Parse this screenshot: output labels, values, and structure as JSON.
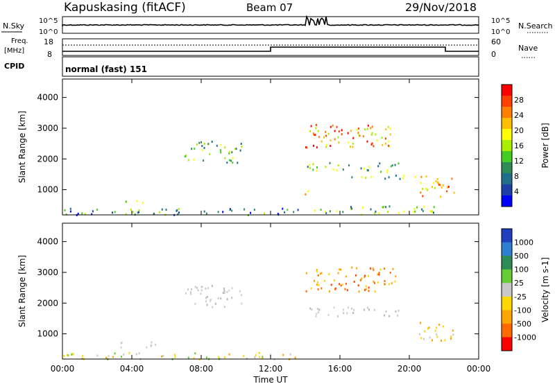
{
  "header": {
    "station": "Kapuskasing (fitACF)",
    "beam": "Beam 07",
    "date": "29/Nov/2018"
  },
  "strips": {
    "nsky_label": "N.Sky",
    "nsearch_label": "N.Search",
    "nsky_ticks": [
      "10^5",
      "10^0"
    ],
    "nsearch_ticks": [
      "10^5",
      "10^0"
    ],
    "freq_label_line1": "Freq.",
    "freq_label_line2": "[MHz]",
    "freq_ticks": [
      "18",
      "8"
    ],
    "nave_label": "Nave",
    "nave_ticks": [
      "60",
      "0"
    ],
    "cpid_label": "CPID",
    "cpid_text": "normal (fast) 151"
  },
  "chart_data": [
    {
      "type": "heatmap",
      "name": "power",
      "xlabel": "",
      "ylabel": "Slant Range [km]",
      "xlim": [
        0,
        24
      ],
      "ylim": [
        180,
        4600
      ],
      "yticks": [
        1000,
        2000,
        3000,
        4000
      ],
      "colorbar_label": "Power [dB]",
      "colorbar_ticks": [
        "28",
        "24",
        "20",
        "16",
        "12",
        "8",
        "4"
      ],
      "colorbar_colors": [
        "#ff0000",
        "#ff4000",
        "#ff8000",
        "#ffbf00",
        "#ffff00",
        "#aaee00",
        "#44cc22",
        "#2e8b57",
        "#1f6f8b",
        "#1c3fa8",
        "#0000ff"
      ],
      "echo_regions": [
        {
          "t0": 0.0,
          "t1": 13.8,
          "r0": 200,
          "r1": 420,
          "level": "low"
        },
        {
          "t0": 3.0,
          "t1": 4.7,
          "r0": 580,
          "r1": 720,
          "level": "mid"
        },
        {
          "t0": 7.0,
          "t1": 10.3,
          "r0": 1900,
          "r1": 2600,
          "level": "mid"
        },
        {
          "t0": 13.6,
          "t1": 14.2,
          "r0": 800,
          "r1": 1000,
          "level": "high"
        },
        {
          "t0": 14.0,
          "t1": 19.2,
          "r0": 2400,
          "r1": 3200,
          "level": "high"
        },
        {
          "t0": 14.0,
          "t1": 19.5,
          "r0": 1600,
          "r1": 1900,
          "level": "mid"
        },
        {
          "t0": 16.0,
          "t1": 20.5,
          "r0": 1350,
          "r1": 1500,
          "level": "mid"
        },
        {
          "t0": 20.5,
          "t1": 22.6,
          "r0": 800,
          "r1": 1500,
          "level": "high"
        },
        {
          "t0": 14.5,
          "t1": 21.8,
          "r0": 200,
          "r1": 500,
          "level": "mid"
        }
      ]
    },
    {
      "type": "heatmap",
      "name": "velocity",
      "xlabel": "Time UT",
      "ylabel": "Slant Range [km]",
      "xlim": [
        0,
        24
      ],
      "ylim": [
        180,
        4600
      ],
      "xticks": [
        "00:00",
        "04:00",
        "08:00",
        "12:00",
        "16:00",
        "20:00",
        "00:00"
      ],
      "yticks": [
        1000,
        2000,
        3000,
        4000
      ],
      "colorbar_label": "Velocity [m s-1]",
      "colorbar_ticks": [
        "1000",
        "500",
        "100",
        "25",
        "-25",
        "-100",
        "-500",
        "-1000"
      ],
      "colorbar_colors": [
        "#1f3fbf",
        "#2e7fcf",
        "#2e8b57",
        "#66cc33",
        "#c8c8c8",
        "#ffd700",
        "#ffa500",
        "#ff6a00",
        "#ff0000"
      ],
      "echo_regions": [
        {
          "t0": 0.0,
          "t1": 13.8,
          "r0": 200,
          "r1": 420,
          "level": "orange-yellow"
        },
        {
          "t0": 3.0,
          "t1": 5.5,
          "r0": 580,
          "r1": 760,
          "level": "gray"
        },
        {
          "t0": 7.0,
          "t1": 10.3,
          "r0": 1900,
          "r1": 2600,
          "level": "gray"
        },
        {
          "t0": 14.0,
          "t1": 19.2,
          "r0": 2400,
          "r1": 3200,
          "level": "orange"
        },
        {
          "t0": 14.0,
          "t1": 19.5,
          "r0": 1600,
          "r1": 1900,
          "level": "gray"
        },
        {
          "t0": 20.5,
          "t1": 22.6,
          "r0": 800,
          "r1": 1400,
          "level": "gray-orange"
        }
      ]
    }
  ]
}
